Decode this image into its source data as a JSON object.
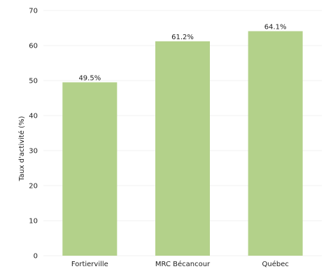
{
  "chart_data": {
    "type": "bar",
    "categories": [
      "Fortierville",
      "MRC Bécancour",
      "Québec"
    ],
    "values": [
      49.5,
      61.2,
      64.1
    ],
    "data_labels": [
      "49.5%",
      "61.2%",
      "64.1%"
    ],
    "title": "",
    "xlabel": "",
    "ylabel": "Taux d'activité (%)",
    "ylim": [
      0,
      70
    ],
    "yticks": [
      0,
      10,
      20,
      30,
      40,
      50,
      60,
      70
    ],
    "grid": true,
    "bar_color": "#b3d18a"
  }
}
